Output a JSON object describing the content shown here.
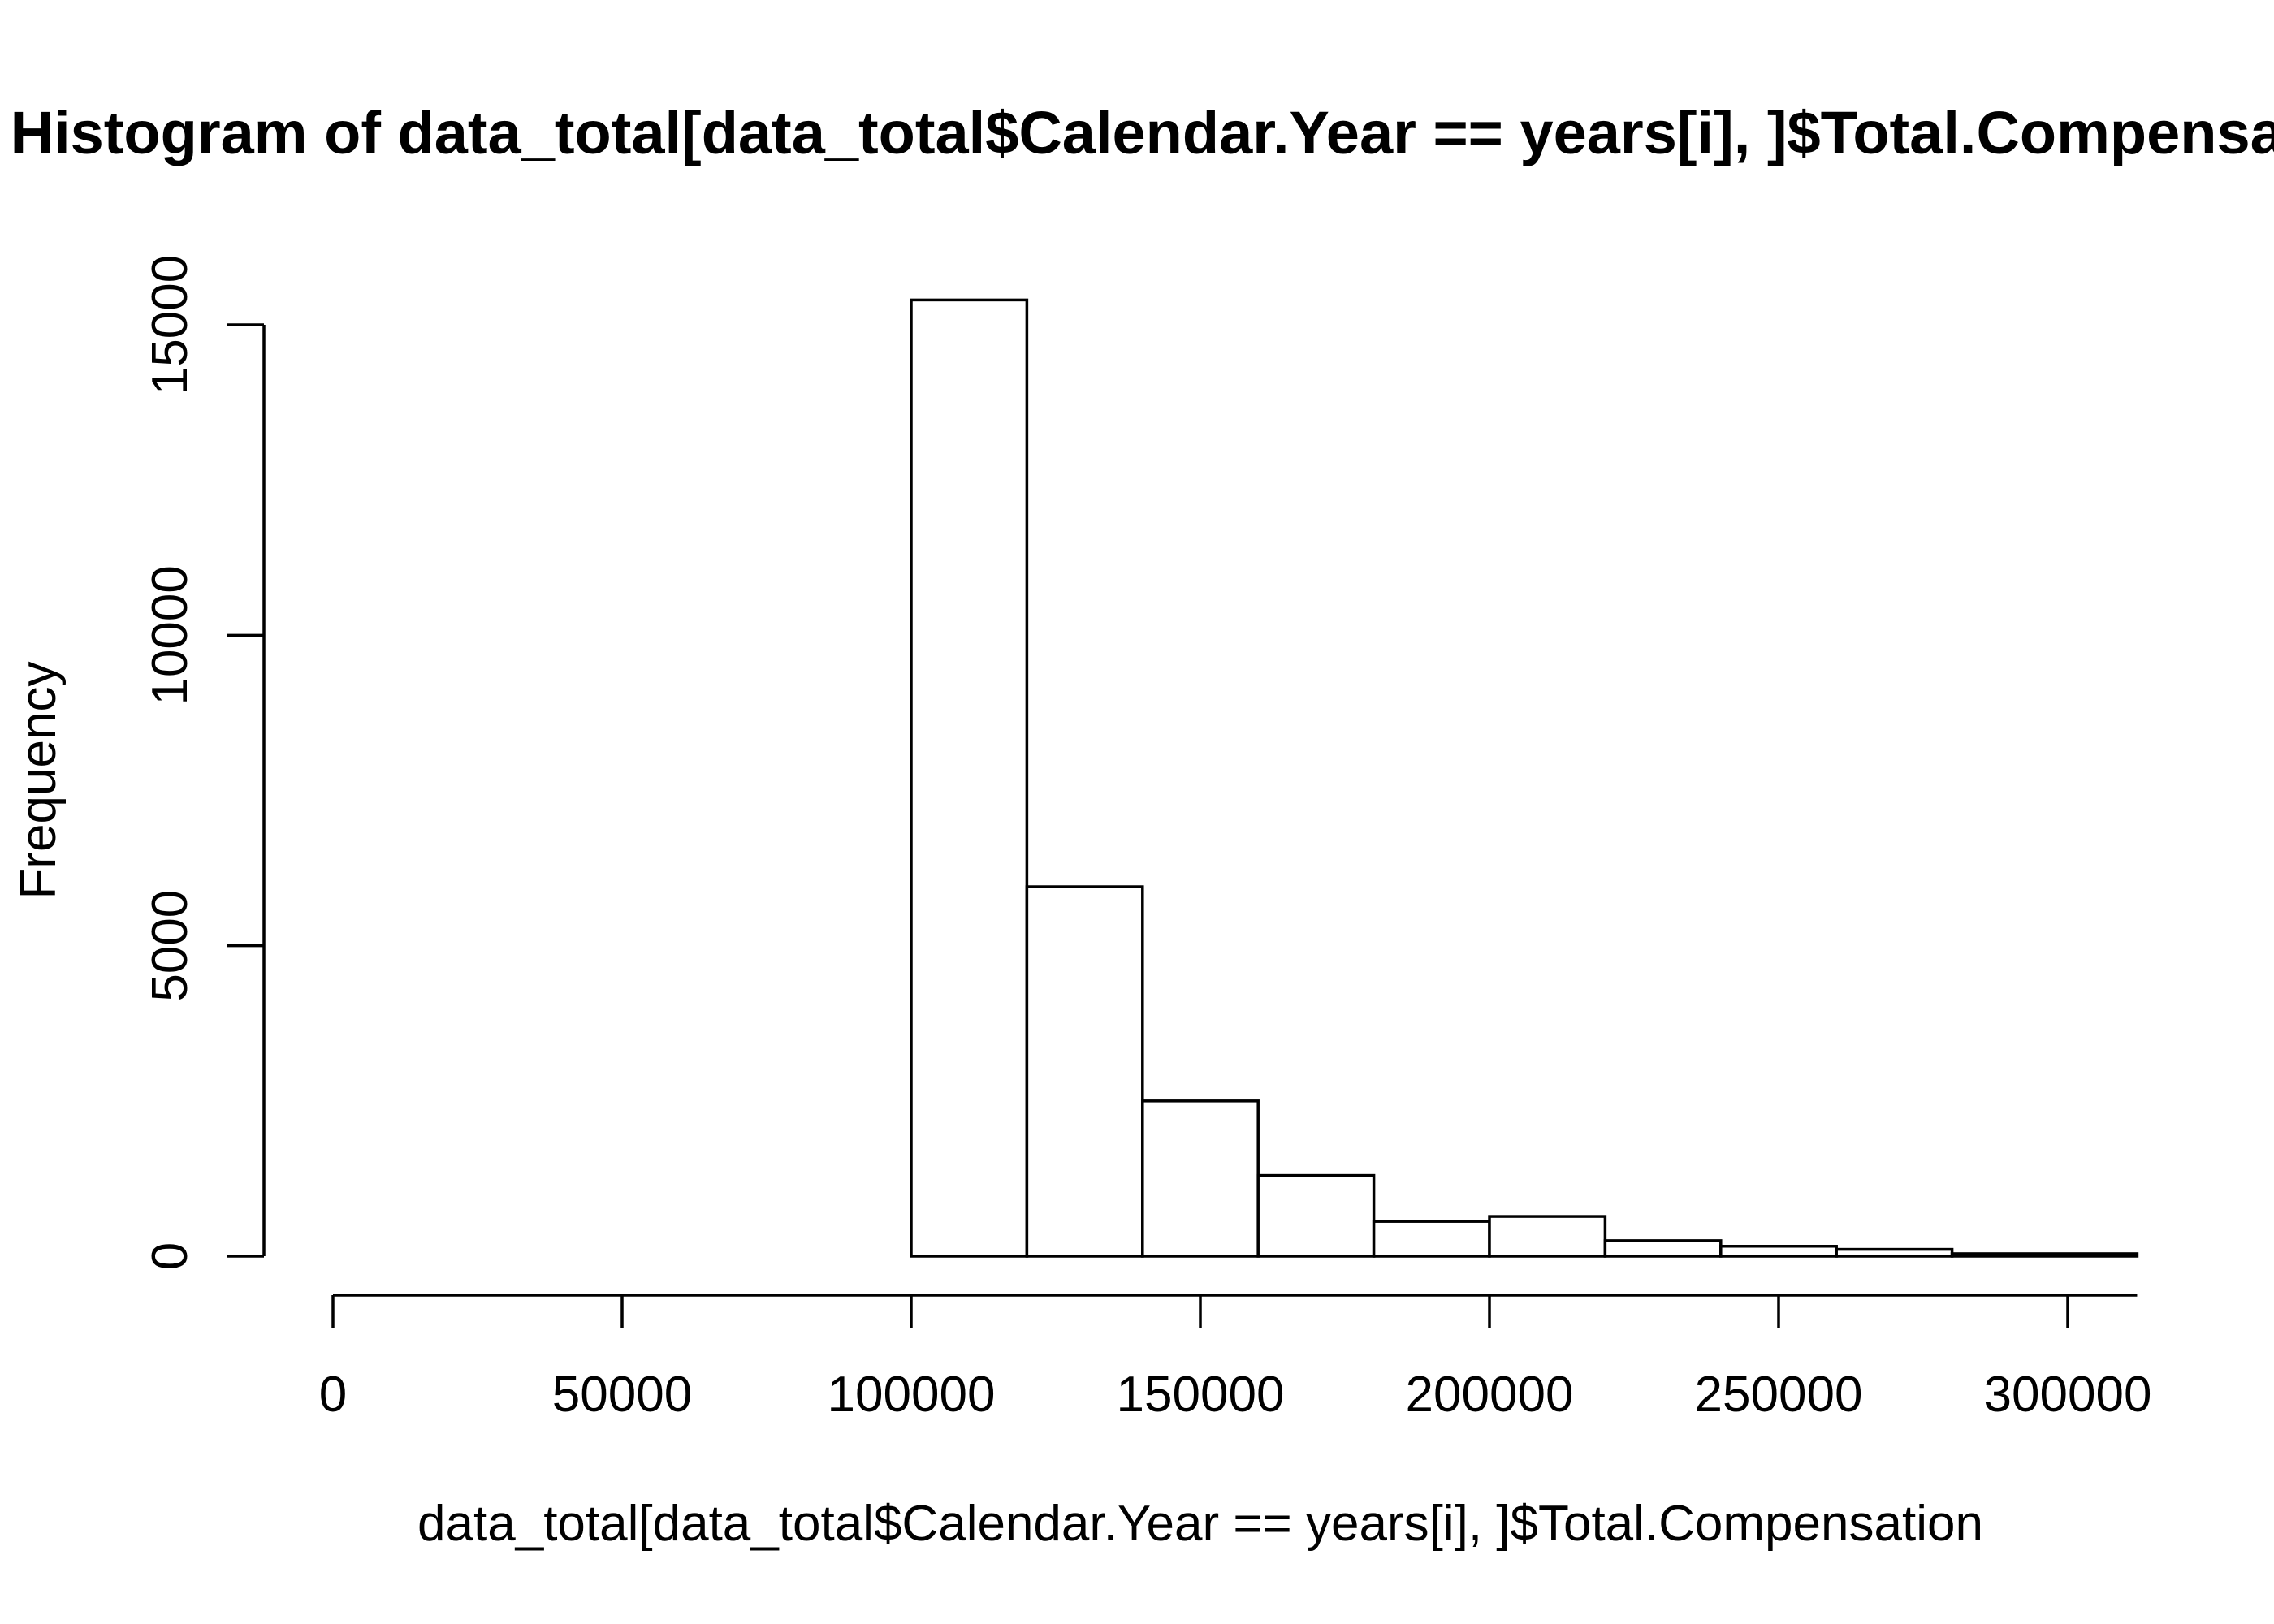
{
  "chart_data": {
    "type": "bar",
    "title": "Histogram of data_total[data_total$Calendar.Year == years[i], ]$Total.Compensation",
    "xlabel": "data_total[data_total$Calendar.Year == years[i], ]$Total.Compensation",
    "ylabel": "Frequency",
    "xlim": [
      0,
      312000
    ],
    "ylim": [
      0,
      15400
    ],
    "x_ticks": [
      0,
      50000,
      100000,
      150000,
      200000,
      250000,
      300000
    ],
    "x_tick_labels": [
      "0",
      "50000",
      "100000",
      "150000",
      "200000",
      "250000",
      "300000"
    ],
    "y_ticks": [
      0,
      5000,
      10000,
      15000
    ],
    "y_tick_labels": [
      "0",
      "5000",
      "10000",
      "15000"
    ],
    "bins": [
      {
        "start": 100000,
        "end": 120000,
        "count": 15400
      },
      {
        "start": 120000,
        "end": 140000,
        "count": 5950
      },
      {
        "start": 140000,
        "end": 160000,
        "count": 2500
      },
      {
        "start": 160000,
        "end": 180000,
        "count": 1300
      },
      {
        "start": 180000,
        "end": 200000,
        "count": 560
      },
      {
        "start": 200000,
        "end": 220000,
        "count": 640
      },
      {
        "start": 220000,
        "end": 240000,
        "count": 250
      },
      {
        "start": 240000,
        "end": 260000,
        "count": 160
      },
      {
        "start": 260000,
        "end": 280000,
        "count": 110
      },
      {
        "start": 280000,
        "end": 312000,
        "count": 40
      }
    ],
    "grid": false,
    "legend": "none"
  }
}
